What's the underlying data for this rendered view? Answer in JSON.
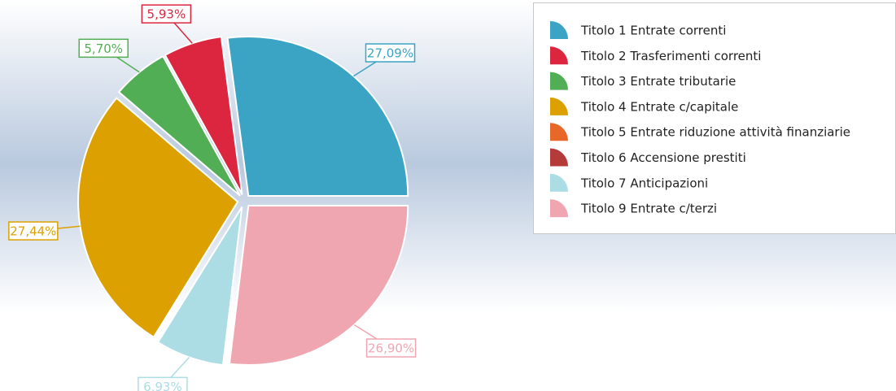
{
  "chart_data": {
    "type": "pie",
    "categories": [
      "Titolo 1 Entrate correnti",
      "Titolo 2 Trasferimenti correnti",
      "Titolo 3 Entrate tributarie",
      "Titolo 4 Entrate c/capitale",
      "Titolo 5 Entrate riduzione attività finanziarie",
      "Titolo 6 Accensione prestiti",
      "Titolo 7 Anticipazioni",
      "Titolo 9 Entrate c/terzi"
    ],
    "values": [
      27.09,
      5.93,
      5.7,
      27.44,
      0,
      0,
      6.93,
      26.9
    ],
    "value_labels": [
      "27,09%",
      "5,93%",
      "5,70%",
      "27,44%",
      null,
      null,
      "6,93%",
      "26,90%"
    ],
    "colors": [
      "#3ba3c3",
      "#dc2640",
      "#52ae55",
      "#dca000",
      "#e8682a",
      "#b53a3a",
      "#acdce4",
      "#f0a6b0"
    ],
    "legend": "top-right"
  }
}
